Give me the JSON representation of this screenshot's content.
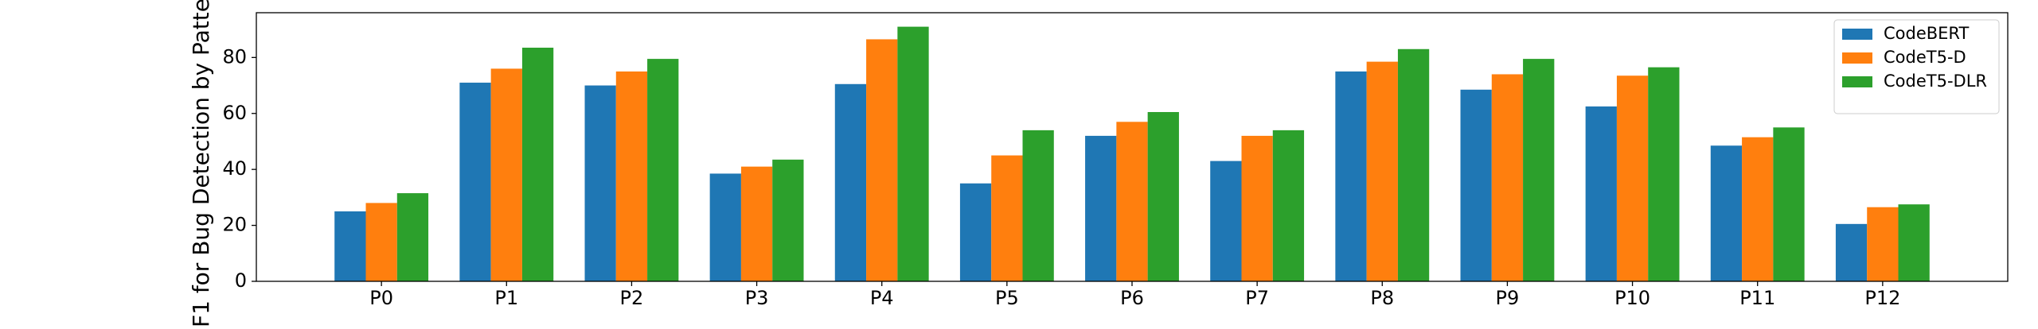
{
  "chart_data": {
    "type": "bar",
    "y_label": "F1 for Bug Detection by Patte",
    "categories": [
      "P0",
      "P1",
      "P2",
      "P3",
      "P4",
      "P5",
      "P6",
      "P7",
      "P8",
      "P9",
      "P10",
      "P11",
      "P12"
    ],
    "series": [
      {
        "name": "CodeBERT",
        "color": "#1f77b4",
        "values": [
          25,
          71,
          70,
          38.5,
          70.5,
          35,
          52,
          43,
          75,
          68.5,
          62.5,
          48.5,
          20.5
        ]
      },
      {
        "name": "CodeT5-D",
        "color": "#ff7f0e",
        "values": [
          28,
          76,
          75,
          41,
          86.5,
          45,
          57,
          52,
          78.5,
          74,
          73.5,
          51.5,
          26.5
        ]
      },
      {
        "name": "CodeT5-DLR",
        "color": "#2ca02c",
        "values": [
          31.5,
          83.5,
          79.5,
          43.5,
          91,
          54,
          60.5,
          54,
          83,
          79.5,
          76.5,
          55,
          27.5
        ]
      }
    ],
    "ylim": [
      0,
      96
    ],
    "yticks": [
      0,
      20,
      40,
      60,
      80
    ],
    "legend": "upper right"
  }
}
